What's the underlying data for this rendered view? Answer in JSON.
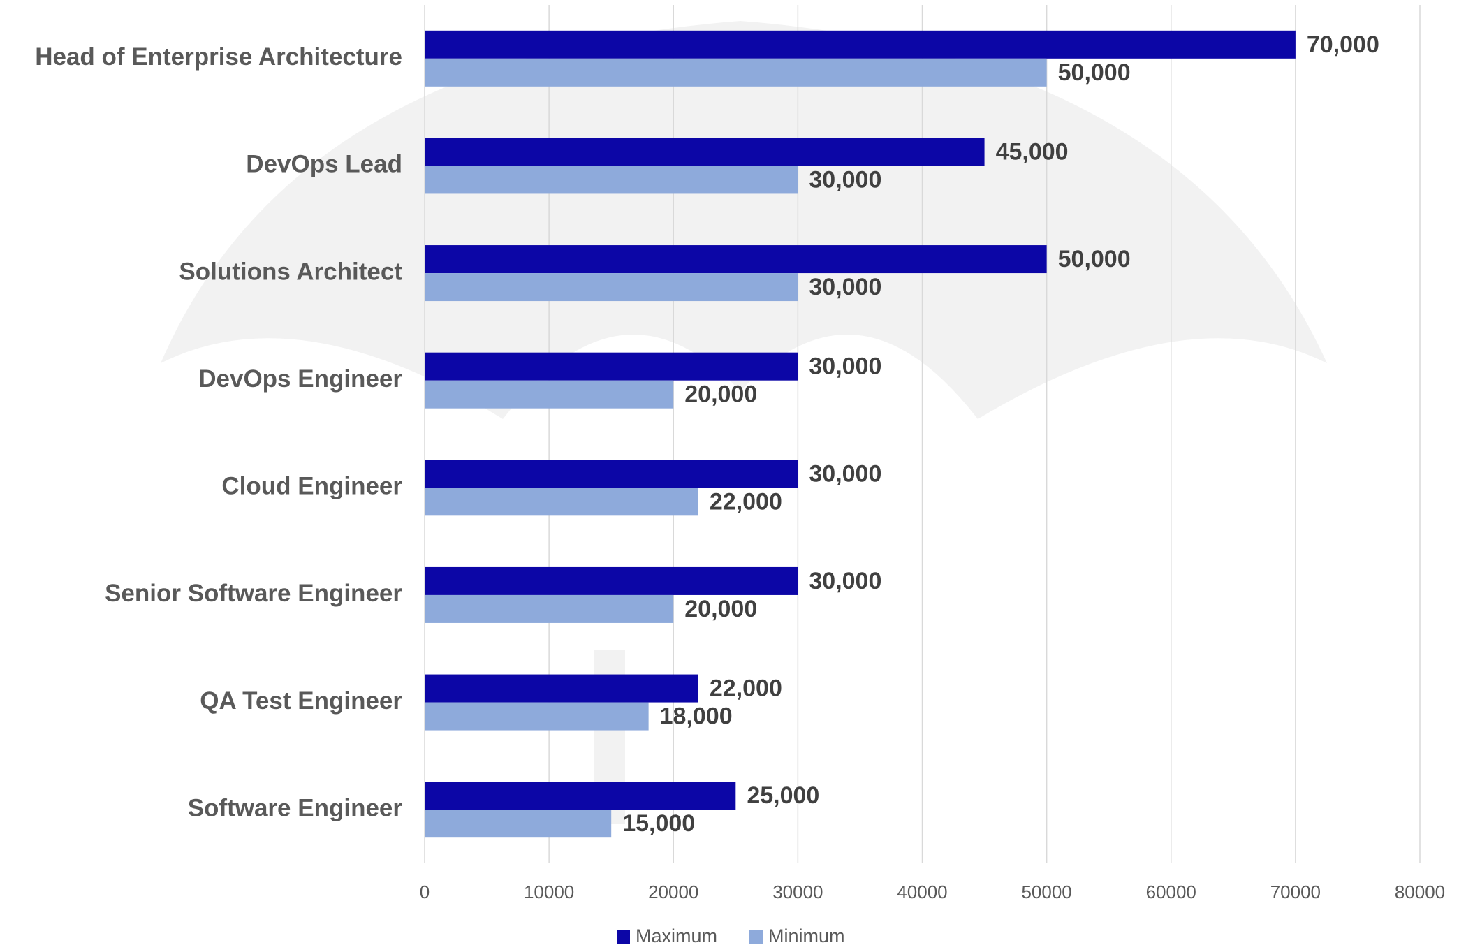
{
  "chart_data": {
    "type": "bar",
    "orientation": "horizontal",
    "categories": [
      "Head of Enterprise Architecture",
      "DevOps Lead",
      "Solutions Architect",
      "DevOps Engineer",
      "Cloud Engineer",
      "Senior Software Engineer",
      "QA Test Engineer",
      "Software Engineer"
    ],
    "series": [
      {
        "name": "Maximum",
        "color": "#0c06a6",
        "values": [
          70000,
          45000,
          50000,
          30000,
          30000,
          30000,
          22000,
          25000
        ],
        "value_labels": [
          "70,000",
          "45,000",
          "50,000",
          "30,000",
          "30,000",
          "30,000",
          "22,000",
          "25,000"
        ]
      },
      {
        "name": "Minimum",
        "color": "#8eaadb",
        "values": [
          50000,
          30000,
          30000,
          20000,
          22000,
          20000,
          18000,
          15000
        ],
        "value_labels": [
          "50,000",
          "30,000",
          "30,000",
          "20,000",
          "22,000",
          "20,000",
          "18,000",
          "15,000"
        ]
      }
    ],
    "xlim": [
      0,
      80000
    ],
    "xticks": [
      0,
      10000,
      20000,
      30000,
      40000,
      50000,
      60000,
      70000,
      80000
    ],
    "grid": true,
    "legend": "bottom"
  }
}
